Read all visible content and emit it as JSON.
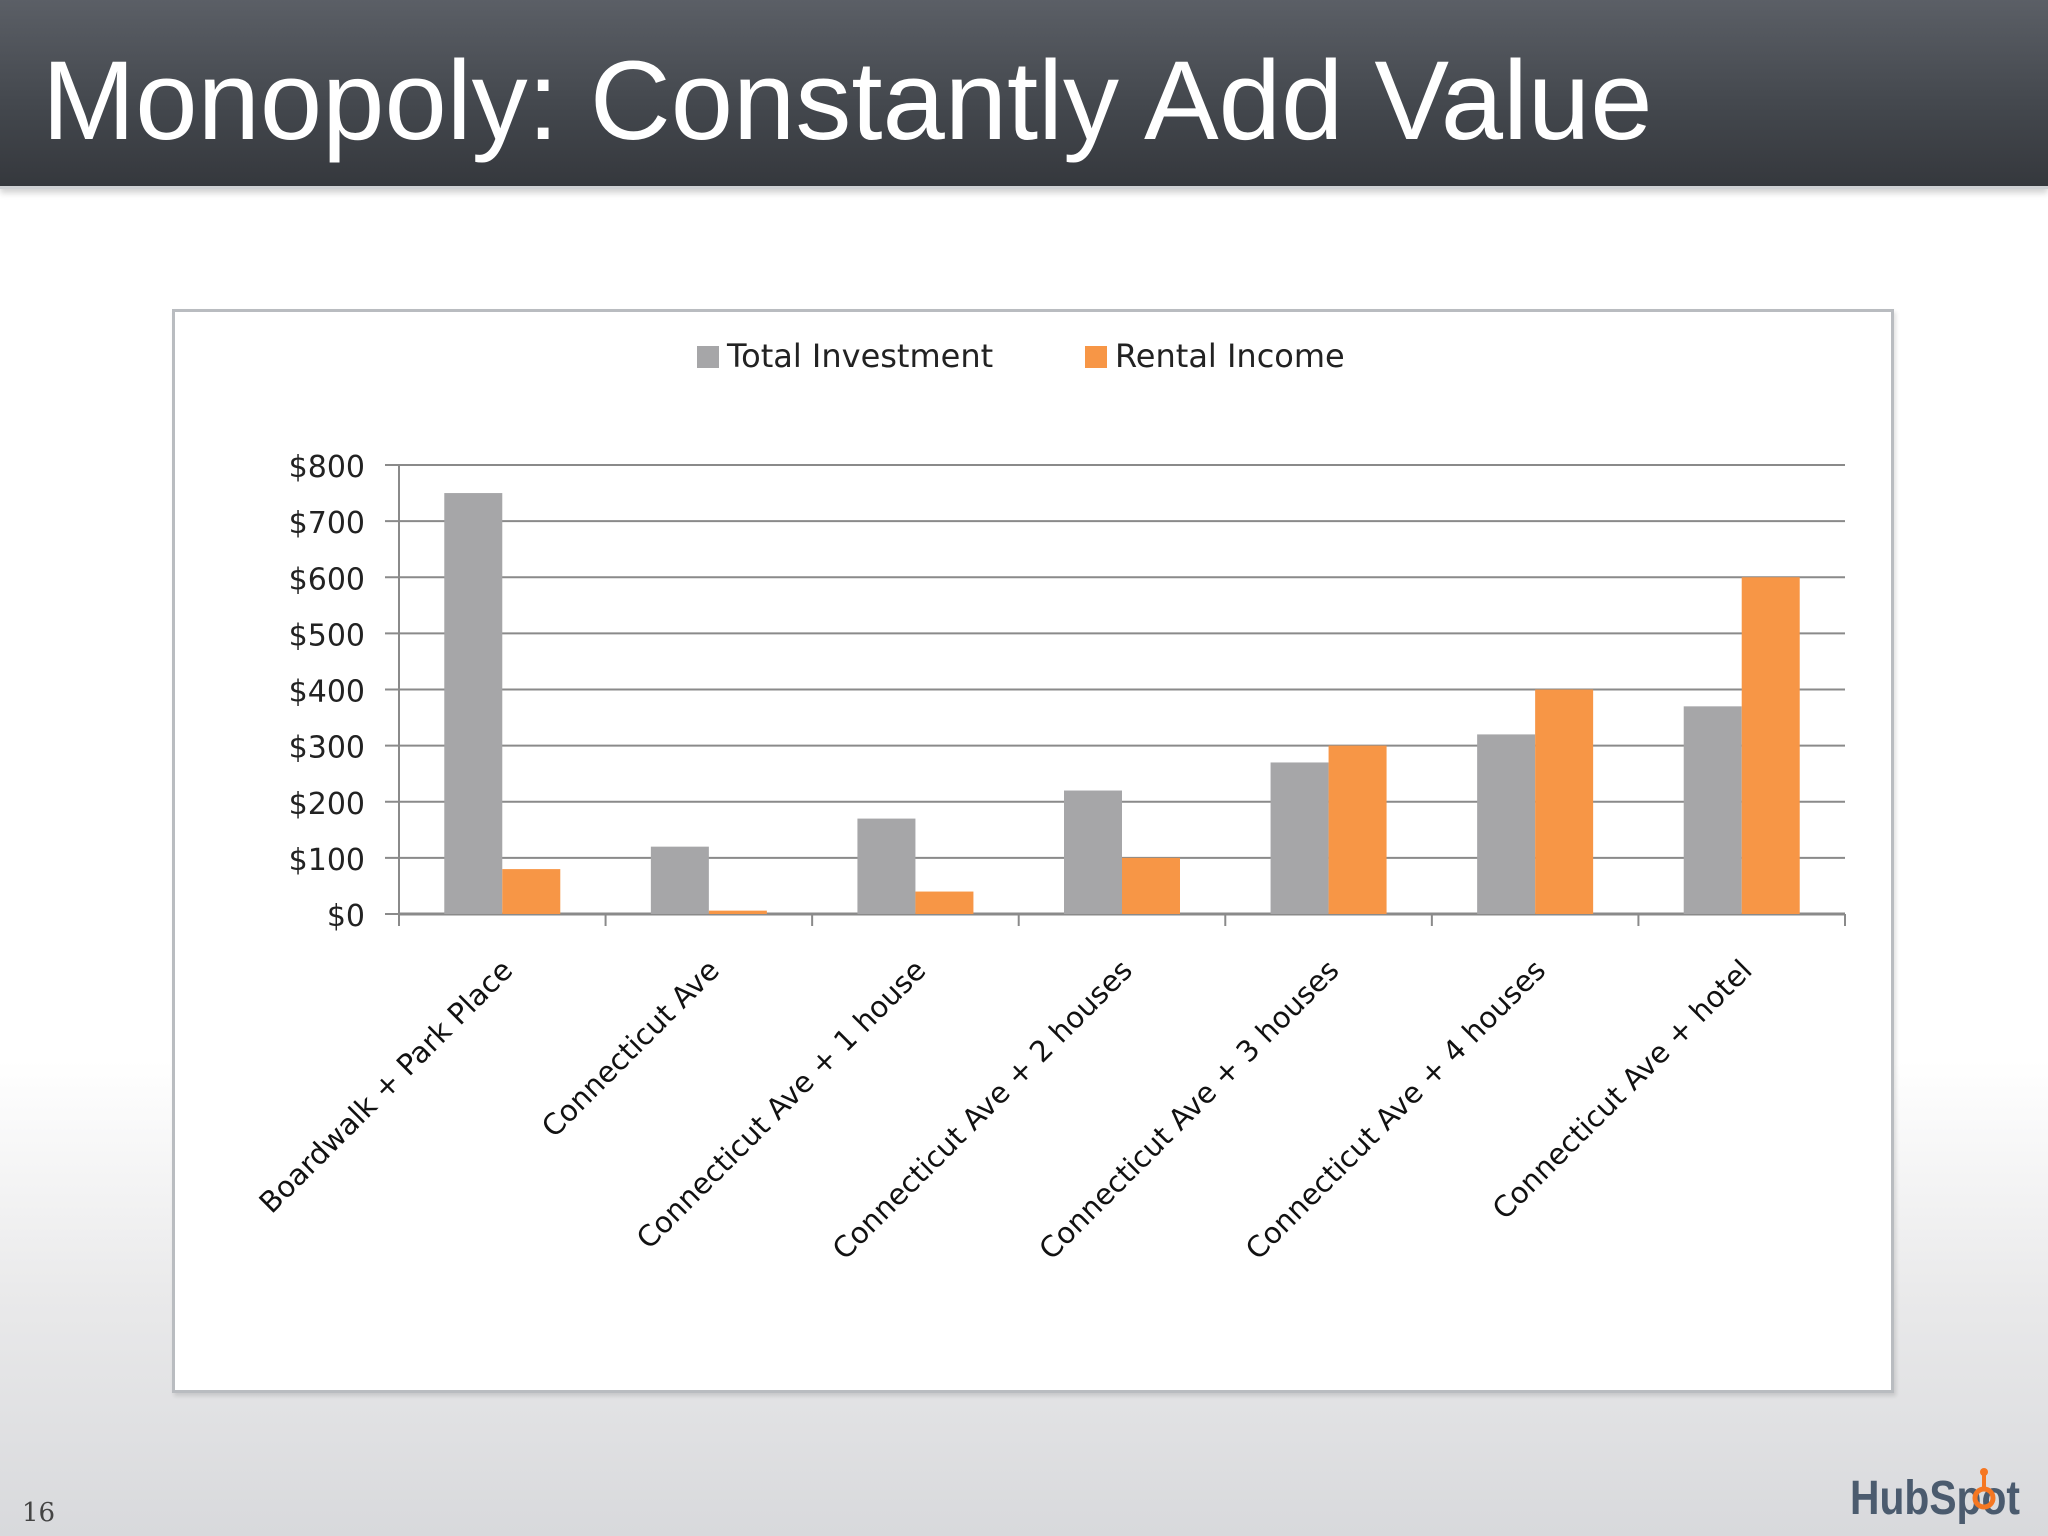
{
  "slide": {
    "title": "Monopoly: Constantly Add Value",
    "page_number": "16",
    "logo_text": "HubSpot"
  },
  "colors": {
    "total_investment": "#a6a6a8",
    "rental_income": "#f79646",
    "gridline": "#8a8a8a"
  },
  "chart_data": {
    "type": "bar",
    "title": "",
    "xlabel": "",
    "ylabel": "",
    "ylim": [
      0,
      800
    ],
    "y_ticks": [
      "$0",
      "$100",
      "$200",
      "$300",
      "$400",
      "$500",
      "$600",
      "$700",
      "$800"
    ],
    "grid": true,
    "legend_position": "top",
    "categories": [
      "Boardwalk + Park Place",
      "Connecticut Ave",
      "Connecticut Ave + 1 house",
      "Connecticut Ave + 2 houses",
      "Connecticut Ave + 3 houses",
      "Connecticut Ave + 4 houses",
      "Connecticut Ave + hotel"
    ],
    "series": [
      {
        "name": "Total Investment",
        "values": [
          750,
          120,
          170,
          220,
          270,
          320,
          370
        ]
      },
      {
        "name": "Rental Income",
        "values": [
          80,
          6,
          40,
          100,
          300,
          400,
          600
        ]
      }
    ]
  }
}
